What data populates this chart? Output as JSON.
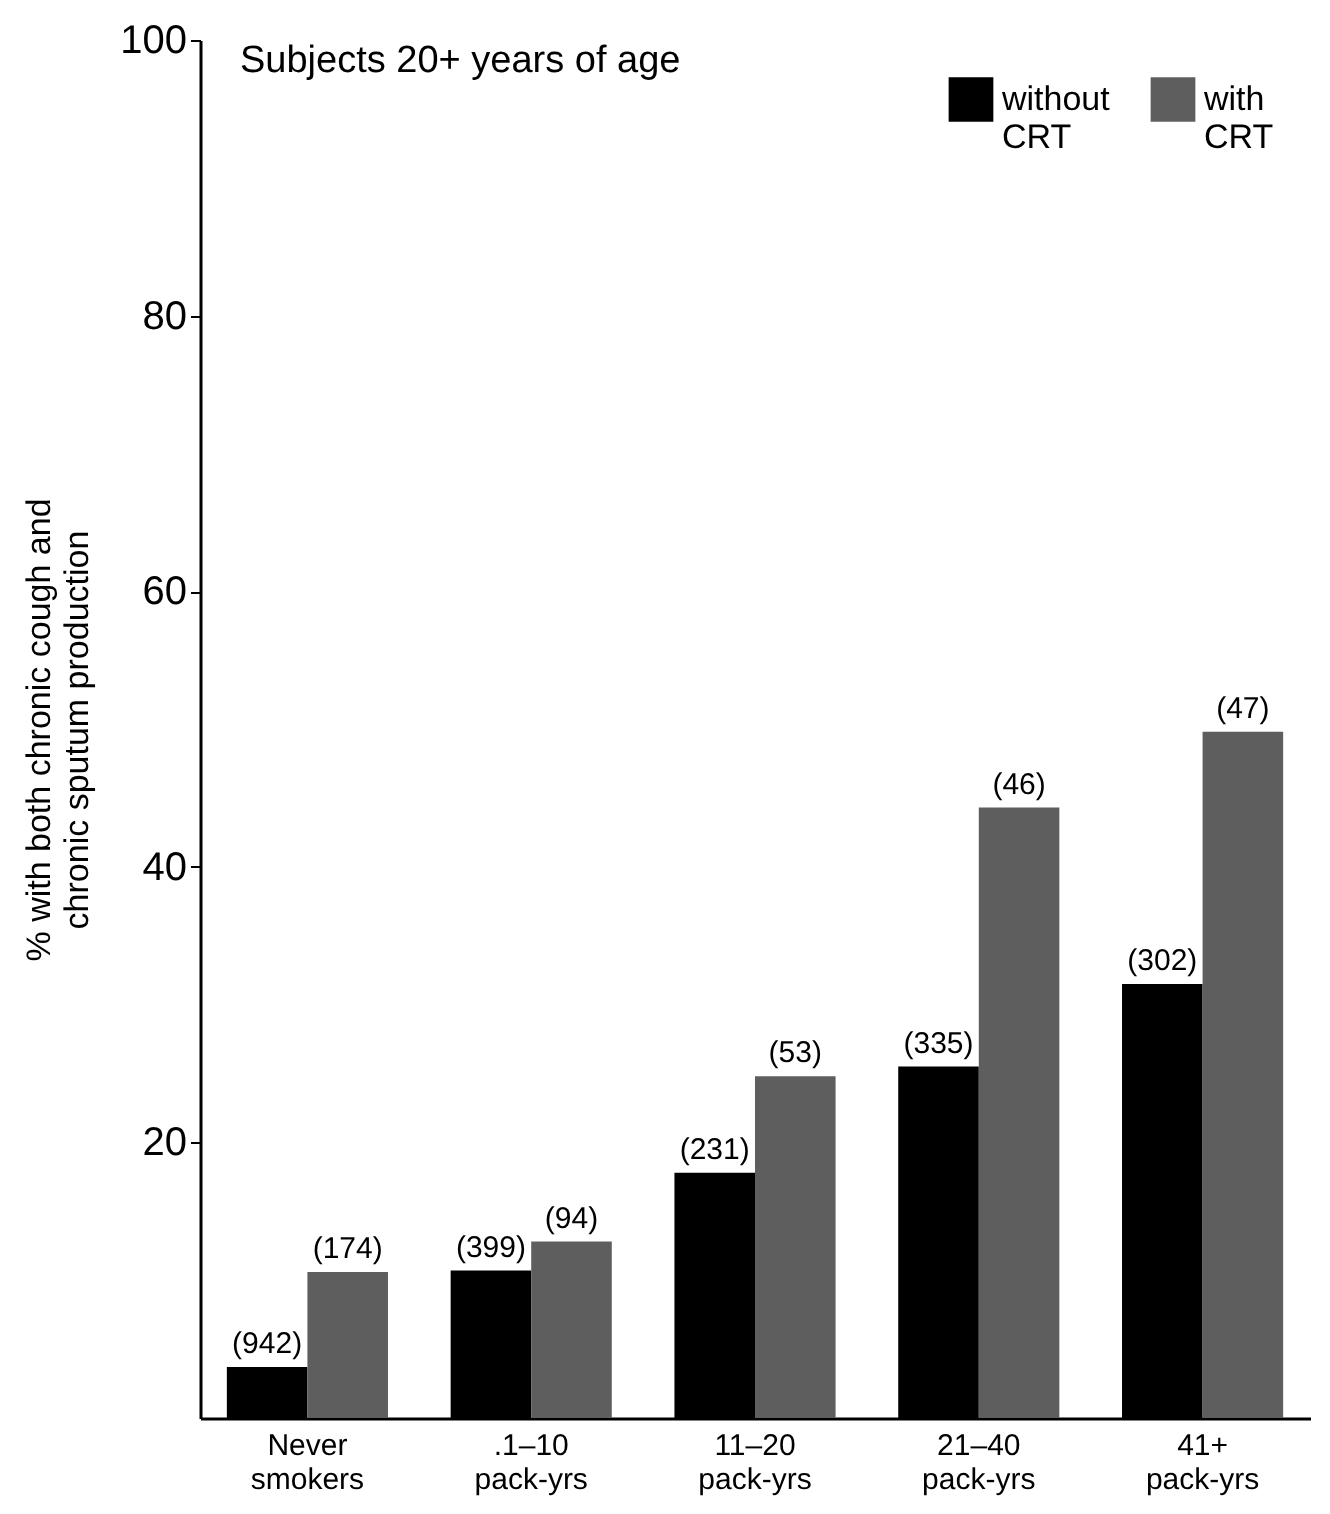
{
  "chart_data": {
    "type": "bar",
    "title": "Subjects 20+ years of age",
    "ylabel": "% with both chronic cough and\nchronic sputum production",
    "categories": [
      "Never\nsmokers",
      ".1–10\npack-yrs",
      "11–20\npack-yrs",
      "21–40\npack-yrs",
      "41+\npack-yrs"
    ],
    "series": [
      {
        "name": "without\nCRT",
        "color": "#000000",
        "values": [
          3.7,
          10.7,
          17.8,
          25.5,
          31.5
        ]
      },
      {
        "name": "with\nCRT",
        "color": "#5e5e5e",
        "values": [
          10.6,
          12.8,
          24.8,
          44.3,
          49.8
        ]
      }
    ],
    "annotations": [
      {
        "text": "(942)",
        "x": "Never\nsmokers",
        "y": 3.7
      },
      {
        "text": "(174)",
        "x": "Never\nsmokers",
        "y": 10.6
      },
      {
        "text": "(399)",
        "x": ".1–10\npack-yrs",
        "y": 10.7
      },
      {
        "text": "(94)",
        "x": ".1–10\npack-yrs",
        "y": 12.8
      },
      {
        "text": "(231)",
        "x": "11–20\npack-yrs",
        "y": 17.8
      },
      {
        "text": "(53)",
        "x": "11–20\npack-yrs",
        "y": 24.8
      },
      {
        "text": "(335)",
        "x": "21–40\npack-yrs",
        "y": 25.5
      },
      {
        "text": "(46)",
        "x": "21–40\npack-yrs",
        "y": 44.3
      },
      {
        "text": "(302)",
        "x": "41+\npack-yrs",
        "y": 31.5
      },
      {
        "text": "(47)",
        "x": "41+\npack-yrs",
        "y": 49.8
      }
    ],
    "ylim": [
      0,
      100
    ],
    "yticks": [
      20,
      40,
      60,
      80,
      100
    ],
    "grid": false,
    "legend": "top right"
  }
}
